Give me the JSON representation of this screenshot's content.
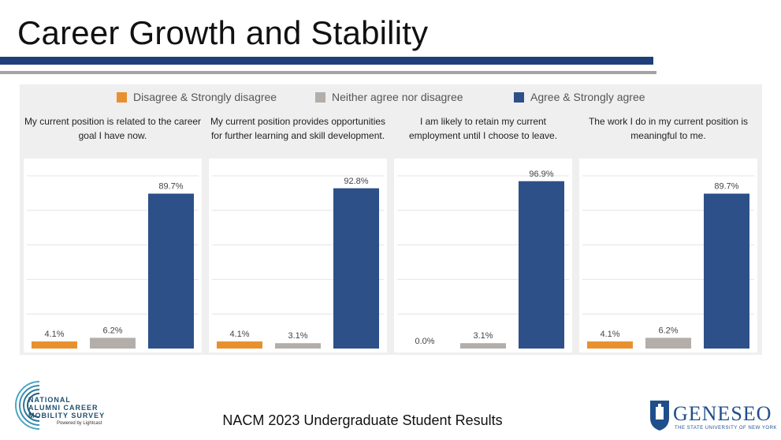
{
  "title": "Career Growth and Stability",
  "footer": "NACM 2023 Undergraduate Student Results",
  "legend": [
    {
      "label": "Disagree & Strongly disagree",
      "color": "#e8902e"
    },
    {
      "label": "Neither agree nor disagree",
      "color": "#b3aeaa"
    },
    {
      "label": "Agree & Strongly agree",
      "color": "#2d5089"
    }
  ],
  "logo_left": {
    "line1": "NATIONAL",
    "line2": "ALUMNI CAREER",
    "line3": "MOBILITY SURVEY",
    "line4": "Powered by Lightcast"
  },
  "logo_right": {
    "name": "GENESEO",
    "sub": "THE STATE UNIVERSITY OF NEW YORK"
  },
  "chart_data": [
    {
      "type": "bar",
      "title": "My current position is related to the career goal I have now.",
      "categories": [
        "Disagree & Strongly disagree",
        "Neither agree nor disagree",
        "Agree & Strongly agree"
      ],
      "values": [
        4.1,
        6.2,
        89.7
      ],
      "labels": [
        "4.1%",
        "6.2%",
        "89.7%"
      ],
      "ylim": [
        0,
        100
      ]
    },
    {
      "type": "bar",
      "title": "My current position provides opportunities for further learning and skill development.",
      "categories": [
        "Disagree & Strongly disagree",
        "Neither agree nor disagree",
        "Agree & Strongly agree"
      ],
      "values": [
        4.1,
        3.1,
        92.8
      ],
      "labels": [
        "4.1%",
        "3.1%",
        "92.8%"
      ],
      "ylim": [
        0,
        100
      ]
    },
    {
      "type": "bar",
      "title": "I am likely to retain my current employment until I choose to leave.",
      "categories": [
        "Disagree & Strongly disagree",
        "Neither agree nor disagree",
        "Agree & Strongly agree"
      ],
      "values": [
        0.0,
        3.1,
        96.9
      ],
      "labels": [
        "0.0%",
        "3.1%",
        "96.9%"
      ],
      "ylim": [
        0,
        100
      ]
    },
    {
      "type": "bar",
      "title": "The work I do in my current position is meaningful to me.",
      "categories": [
        "Disagree & Strongly disagree",
        "Neither agree nor disagree",
        "Agree & Strongly agree"
      ],
      "values": [
        4.1,
        6.2,
        89.7
      ],
      "labels": [
        "4.1%",
        "6.2%",
        "89.7%"
      ],
      "ylim": [
        0,
        100
      ]
    }
  ]
}
